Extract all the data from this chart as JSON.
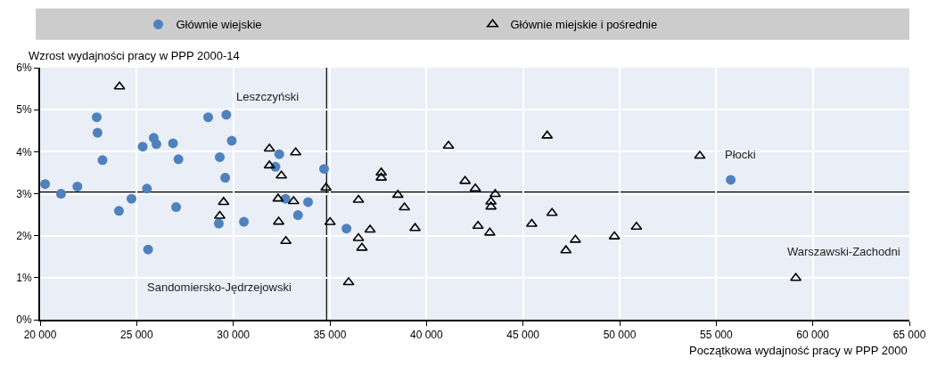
{
  "chart_data": {
    "type": "scatter",
    "xlabel": "Początkowa wydajność pracy w PPP 2000",
    "ylabel": "Wzrost wydajności pracy w PPP 2000-14",
    "xlim": [
      20000,
      65000
    ],
    "xticks": [
      {
        "value": 20000,
        "label": "20 000"
      },
      {
        "value": 25000,
        "label": "25 000"
      },
      {
        "value": 30000,
        "label": "30 000"
      },
      {
        "value": 35000,
        "label": "35 000"
      },
      {
        "value": 40000,
        "label": "40 000"
      },
      {
        "value": 45000,
        "label": "45 000"
      },
      {
        "value": 50000,
        "label": "50 000"
      },
      {
        "value": 55000,
        "label": "55 000"
      },
      {
        "value": 60000,
        "label": "60 000"
      },
      {
        "value": 65000,
        "label": "65 000"
      }
    ],
    "ylim": [
      0,
      6
    ],
    "yticks": [
      {
        "value": 0,
        "label": "0%"
      },
      {
        "value": 1,
        "label": "1%"
      },
      {
        "value": 2,
        "label": "2%"
      },
      {
        "value": 3,
        "label": "3%"
      },
      {
        "value": 4,
        "label": "4%"
      },
      {
        "value": 5,
        "label": "5%"
      },
      {
        "value": 6,
        "label": "6%"
      }
    ],
    "grid": true,
    "legend": "top",
    "series": [
      {
        "name": "Głównie wiejskie",
        "color": "#4f81bd",
        "marker": "circle",
        "x": [
          20260,
          21080,
          21930,
          22930,
          22970,
          23230,
          24080,
          24730,
          25310,
          25530,
          25590,
          25880,
          26020,
          26880,
          27040,
          27160,
          28700,
          29300,
          29250,
          29580,
          29640,
          29920,
          30550,
          32180,
          32380,
          32700,
          33350,
          33870,
          34700,
          35860,
          55750
        ],
        "values": [
          3.23,
          3.0,
          3.17,
          4.82,
          4.45,
          3.8,
          2.59,
          2.88,
          4.12,
          3.12,
          1.67,
          4.33,
          4.18,
          4.2,
          2.68,
          3.82,
          4.82,
          3.87,
          2.29,
          3.38,
          4.88,
          4.26,
          2.33,
          3.64,
          3.94,
          2.88,
          2.49,
          2.8,
          3.59,
          2.17,
          3.33
        ]
      },
      {
        "name": "Głównie miejskie i pośrednie",
        "color": "#000000",
        "marker": "triangle",
        "x": [
          24110,
          31870,
          33230,
          31870,
          32490,
          34800,
          29500,
          32320,
          33120,
          29300,
          32350,
          32720,
          35010,
          36480,
          36480,
          36660,
          35970,
          37080,
          37660,
          37660,
          38520,
          38860,
          39410,
          41140,
          42000,
          42530,
          42670,
          43560,
          43340,
          43340,
          43280,
          45450,
          46250,
          46500,
          47220,
          47710,
          49730,
          50870,
          54150,
          59120
        ],
        "values": [
          5.55,
          4.07,
          3.98,
          3.67,
          3.43,
          3.14,
          2.8,
          2.88,
          2.82,
          2.47,
          2.33,
          1.87,
          2.32,
          2.85,
          1.94,
          1.71,
          0.89,
          2.14,
          3.5,
          3.38,
          2.97,
          2.67,
          2.18,
          4.14,
          3.3,
          3.12,
          2.23,
          2.99,
          2.81,
          2.69,
          2.07,
          2.28,
          4.38,
          2.54,
          1.65,
          1.9,
          1.98,
          2.21,
          3.9,
          0.99
        ]
      }
    ],
    "ref_lines": [
      {
        "axis": "y",
        "value": 3.04,
        "color": "#000000"
      },
      {
        "axis": "x",
        "value": 34830,
        "color": "#000000"
      }
    ],
    "annotations": [
      {
        "text": "Leszczyński",
        "x": 29640,
        "y": 4.88
      },
      {
        "text": "Sandomiersko-Jędrzejowski",
        "x": 25590,
        "y": 1.67
      },
      {
        "text": "Płocki",
        "x": 55750,
        "y": 3.33
      },
      {
        "text": "Warszawski-Zachodni",
        "x": 59120,
        "y": 0.99
      }
    ]
  }
}
